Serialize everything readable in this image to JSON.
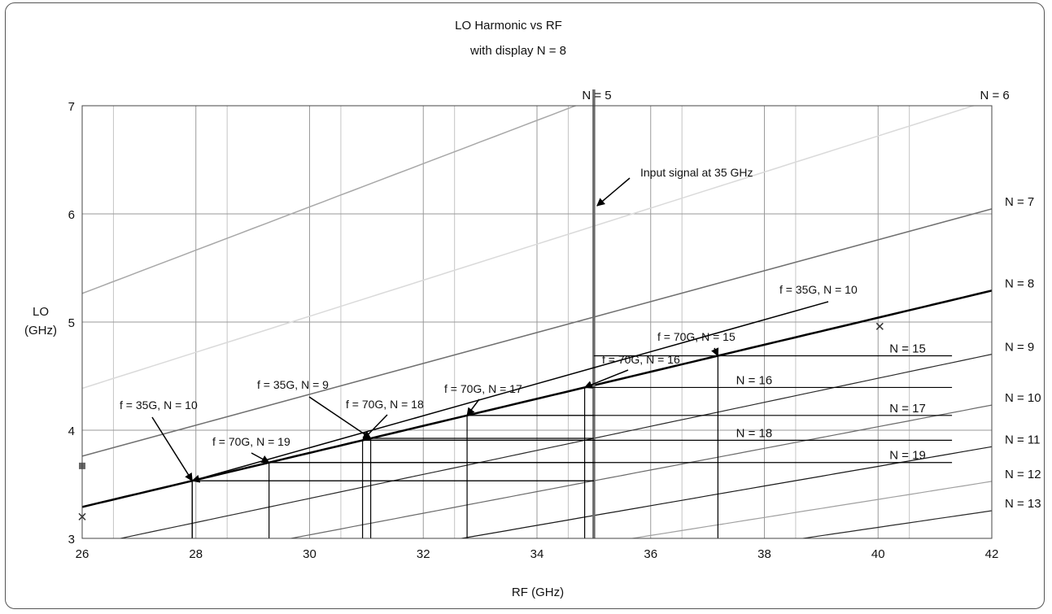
{
  "chart_data": {
    "type": "line",
    "title": "LO Harmonic vs RF",
    "subtitle": "with display N = 8",
    "xlabel": "RF (GHz)",
    "ylabel_line1": "LO",
    "ylabel_line2": "(GHz)",
    "xlim": [
      26,
      42
    ],
    "ylim": [
      3,
      7
    ],
    "x_ticks": [
      "26",
      "28",
      "30",
      "32",
      "34",
      "36",
      "38",
      "40",
      "42"
    ],
    "y_ticks": [
      "3",
      "4",
      "5",
      "6",
      "7"
    ],
    "grid": true,
    "harmonic_series": [
      {
        "name": "N = 5",
        "n": 5,
        "color": "#a8a8a8",
        "width": 1.5
      },
      {
        "name": "N = 6",
        "n": 6,
        "color": "#dadada",
        "width": 1.5
      },
      {
        "name": "N = 7",
        "n": 7,
        "color": "#707070",
        "width": 1.5
      },
      {
        "name": "N = 8",
        "n": 8,
        "color": "#000000",
        "width": 2.5
      },
      {
        "name": "N = 9",
        "n": 9,
        "color": "#2a2a2a",
        "width": 1.2
      },
      {
        "name": "N = 10",
        "n": 10,
        "color": "#6a6a6a",
        "width": 1.2
      },
      {
        "name": "N = 11",
        "n": 11,
        "color": "#1a1a1a",
        "width": 1.2
      },
      {
        "name": "N = 12",
        "n": 12,
        "color": "#a0a0a0",
        "width": 1.2
      },
      {
        "name": "N = 13",
        "n": 13,
        "color": "#2a2a2a",
        "width": 1.2
      }
    ],
    "vertical_signal": {
      "x": 35,
      "label": "Input signal at 35 GHz",
      "color": "#6a6a6a"
    },
    "response_levels": [
      {
        "name": "N = 15",
        "freq": 70,
        "n": 15,
        "label_x": 40.2
      },
      {
        "name": "N = 16",
        "freq": 70,
        "n": 16,
        "label_x": 37.5
      },
      {
        "name": "N = 17",
        "freq": 70,
        "n": 17,
        "label_x": 40.2
      },
      {
        "name": "N = 18",
        "freq": 70,
        "n": 18,
        "label_x": 37.5
      },
      {
        "name": "N = 19",
        "freq": 70,
        "n": 19,
        "label_x": 40.2
      }
    ],
    "annotations": [
      {
        "text": "f = 35G, N = 10",
        "freq": 35,
        "n": 10
      },
      {
        "text": "f = 70G, N = 19",
        "freq": 70,
        "n": 19
      },
      {
        "text": "f = 35G, N = 9",
        "freq": 35,
        "n": 9
      },
      {
        "text": "f = 70G, N = 18",
        "freq": 70,
        "n": 18
      },
      {
        "text": "f = 70G, N = 17",
        "freq": 70,
        "n": 17
      },
      {
        "text": "f = 70G, N = 16",
        "freq": 70,
        "n": 16
      },
      {
        "text": "f = 70G, N = 15",
        "freq": 70,
        "n": 15
      },
      {
        "text": "f = 35G, N = 10",
        "freq": 35,
        "n": 10
      }
    ]
  }
}
